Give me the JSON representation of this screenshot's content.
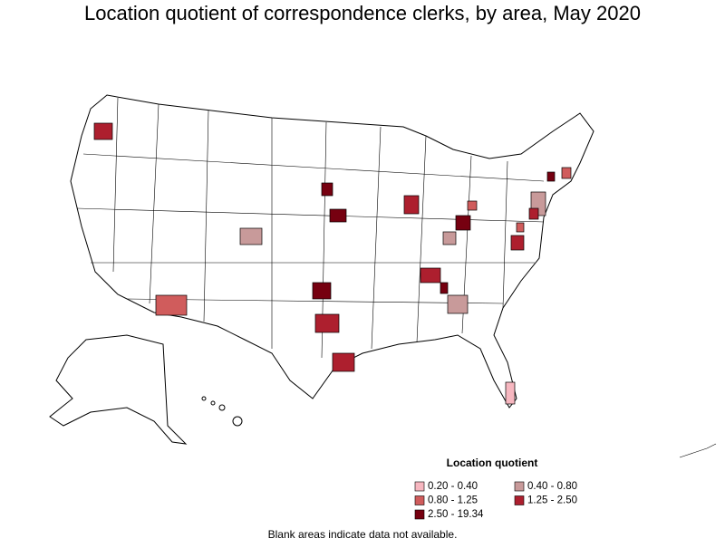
{
  "title": "Location quotient of correspondence clerks, by area, May 2020",
  "legend": {
    "title": "Location quotient",
    "items": [
      {
        "label": "0.20 - 0.40",
        "color": "#f7b7c0"
      },
      {
        "label": "0.40 - 0.80",
        "color": "#c89a9a"
      },
      {
        "label": "0.80 - 1.25",
        "color": "#d05c5c"
      },
      {
        "label": "1.25 - 2.50",
        "color": "#ad1f2e"
      },
      {
        "label": "2.50 - 19.34",
        "color": "#760010"
      }
    ]
  },
  "note": "Blank areas indicate data not available."
}
